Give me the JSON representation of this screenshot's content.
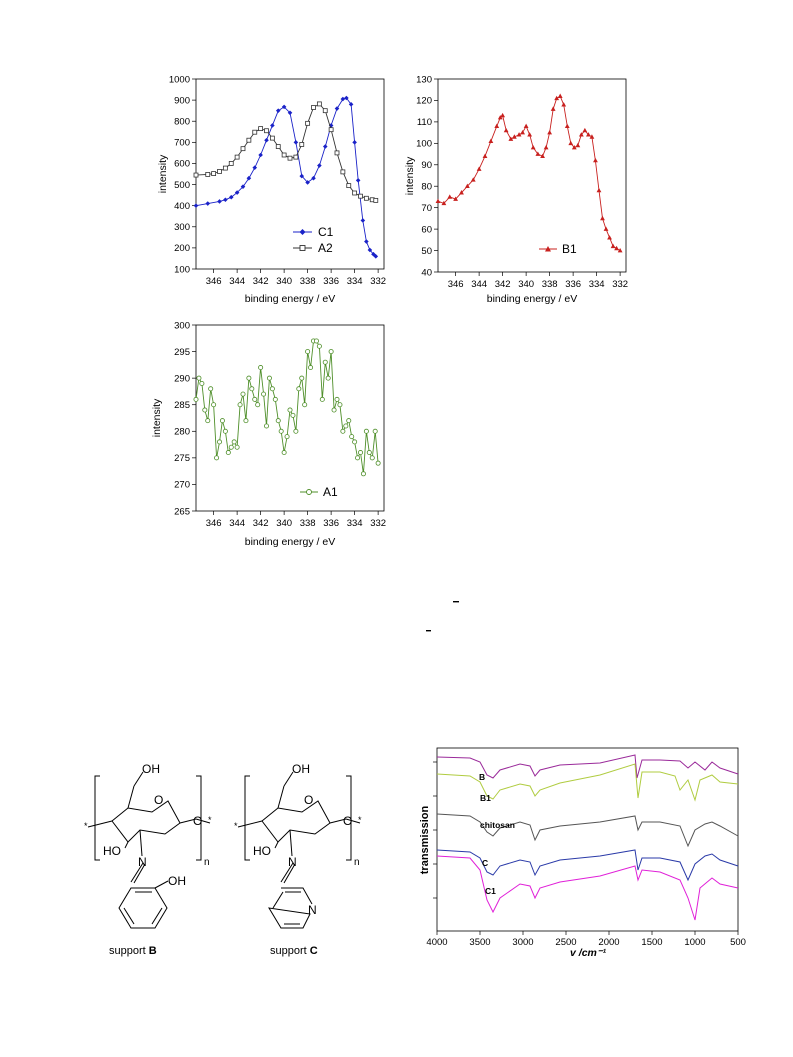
{
  "chart_data": [
    {
      "type": "line",
      "id": "xps1",
      "xlabel": "binding energy / eV",
      "ylabel": "intensity",
      "xlim": [
        347.5,
        331.5
      ],
      "ylim": [
        100,
        1000
      ],
      "xticks": [
        346,
        344,
        342,
        340,
        338,
        336,
        334,
        332
      ],
      "yticks": [
        100,
        200,
        300,
        400,
        500,
        600,
        700,
        800,
        900,
        1000
      ],
      "legend_position": "bottom-center",
      "series": [
        {
          "name": "C1",
          "color": "#1a22c8",
          "marker": "diamond-filled",
          "x": [
            347.5,
            346.5,
            345.5,
            345,
            344.5,
            344,
            343.5,
            343,
            342.5,
            342,
            341.5,
            341,
            340.5,
            340,
            339.5,
            339,
            338.5,
            338,
            337.5,
            337,
            336.5,
            336,
            335.5,
            335,
            334.7,
            334.3,
            334,
            333.7,
            333.3,
            333,
            332.7,
            332.4,
            332.2
          ],
          "y": [
            400,
            410,
            420,
            428,
            440,
            462,
            490,
            530,
            580,
            640,
            710,
            780,
            850,
            868,
            840,
            700,
            540,
            510,
            530,
            590,
            680,
            780,
            860,
            905,
            910,
            880,
            700,
            520,
            330,
            230,
            190,
            170,
            160
          ]
        },
        {
          "name": "A2",
          "color": "#333333",
          "marker": "square-open",
          "x": [
            347.5,
            346.5,
            346,
            345.5,
            345,
            344.5,
            344,
            343.5,
            343,
            342.5,
            342,
            341.5,
            341,
            340.5,
            340,
            339.5,
            339,
            338.5,
            338,
            337.5,
            337,
            336.5,
            336,
            335.5,
            335,
            334.5,
            334,
            333.5,
            333,
            332.5,
            332.2
          ],
          "y": [
            545,
            548,
            552,
            562,
            578,
            600,
            630,
            670,
            710,
            748,
            765,
            755,
            720,
            680,
            640,
            625,
            630,
            690,
            790,
            865,
            882,
            850,
            760,
            650,
            560,
            495,
            460,
            445,
            435,
            428,
            425
          ]
        }
      ]
    },
    {
      "type": "line",
      "id": "xps2",
      "xlabel": "binding energy / eV",
      "ylabel": "intensity",
      "xlim": [
        347.5,
        331.5
      ],
      "ylim": [
        40,
        130
      ],
      "xticks": [
        346,
        344,
        342,
        340,
        338,
        336,
        334,
        332
      ],
      "yticks": [
        40,
        50,
        60,
        70,
        80,
        90,
        100,
        110,
        120,
        130
      ],
      "legend_position": "bottom-right",
      "series": [
        {
          "name": "B1",
          "color": "#c8201e",
          "marker": "triangle-filled",
          "x": [
            347.5,
            347,
            346.5,
            346,
            345.5,
            345,
            344.5,
            344,
            343.5,
            343,
            342.5,
            342.2,
            342,
            341.7,
            341.3,
            341,
            340.6,
            340.3,
            340,
            339.7,
            339.4,
            339,
            338.6,
            338.3,
            338,
            337.7,
            337.4,
            337.1,
            336.8,
            336.5,
            336.2,
            335.9,
            335.6,
            335.3,
            335,
            334.7,
            334.4,
            334.1,
            333.8,
            333.5,
            333.2,
            332.9,
            332.6,
            332.3,
            332
          ],
          "y": [
            73,
            72,
            75,
            74,
            77,
            80,
            83,
            88,
            94,
            101,
            108,
            112,
            113,
            106,
            102,
            103,
            104,
            105,
            108,
            104,
            98,
            95,
            94,
            98,
            105,
            116,
            121,
            122,
            118,
            108,
            100,
            98,
            99,
            104,
            106,
            104,
            103,
            92,
            78,
            65,
            60,
            56,
            52,
            51,
            50
          ]
        }
      ]
    },
    {
      "type": "line",
      "id": "xps3",
      "xlabel": "binding energy / eV",
      "ylabel": "intensity",
      "xlim": [
        347.5,
        331.5
      ],
      "ylim": [
        265,
        300
      ],
      "xticks": [
        346,
        344,
        342,
        340,
        338,
        336,
        334,
        332
      ],
      "yticks": [
        265,
        270,
        275,
        280,
        285,
        290,
        295,
        300
      ],
      "legend_position": "bottom-center",
      "series": [
        {
          "name": "A1",
          "color": "#4f8f2a",
          "marker": "circle-open",
          "x": [
            347.5,
            347.25,
            347,
            346.75,
            346.5,
            346.25,
            346,
            345.75,
            345.5,
            345.25,
            345,
            344.75,
            344.5,
            344.25,
            344,
            343.75,
            343.5,
            343.25,
            343,
            342.75,
            342.5,
            342.25,
            342,
            341.75,
            341.5,
            341.25,
            341,
            340.75,
            340.5,
            340.25,
            340,
            339.75,
            339.5,
            339.25,
            339,
            338.75,
            338.5,
            338.25,
            338,
            337.75,
            337.5,
            337.25,
            337,
            336.75,
            336.5,
            336.25,
            336,
            335.75,
            335.5,
            335.25,
            335,
            334.75,
            334.5,
            334.25,
            334,
            333.75,
            333.5,
            333.25,
            333,
            332.75,
            332.5,
            332.25,
            332
          ],
          "y": [
            286,
            290,
            289,
            284,
            282,
            288,
            285,
            275,
            278,
            282,
            280,
            276,
            277,
            278,
            277,
            285,
            287,
            282,
            290,
            288,
            286,
            285,
            292,
            287,
            281,
            290,
            288,
            286,
            282,
            280,
            276,
            279,
            284,
            283,
            280,
            288,
            290,
            285,
            295,
            292,
            297,
            297,
            296,
            286,
            293,
            290,
            295,
            284,
            286,
            285,
            280,
            281,
            282,
            279,
            278,
            275,
            276,
            272,
            280,
            276,
            275,
            280,
            274
          ]
        }
      ]
    },
    {
      "type": "line",
      "id": "ir",
      "xlabel": "v /cm⁻¹",
      "ylabel": "transmission",
      "xlim": [
        4000,
        500
      ],
      "xticks": [
        4000,
        3500,
        3000,
        2500,
        2000,
        1500,
        1000,
        500
      ],
      "legend_position": "inline",
      "series": [
        {
          "name": "B",
          "color": "#9a2a9a"
        },
        {
          "name": "B1",
          "color": "#a8c832"
        },
        {
          "name": "chitosan",
          "color": "#555555"
        },
        {
          "name": "C",
          "color": "#2a3aa8"
        },
        {
          "name": "C1",
          "color": "#e020d8"
        }
      ]
    }
  ],
  "chem": {
    "b": {
      "oh_top": "OH",
      "ho_left": "HO",
      "n": "N",
      "o_ring": "O",
      "o_link": "O",
      "oh_phenol": "OH",
      "sub": "n",
      "star": "*",
      "caption": "support ",
      "caption_bold": "B"
    },
    "c": {
      "oh_top": "OH",
      "ho_left": "HO",
      "n": "N",
      "o_ring": "O",
      "o_link": "O",
      "n_pyr": "N",
      "sub": "n",
      "star": "*",
      "caption": "support ",
      "caption_bold": "C"
    }
  }
}
